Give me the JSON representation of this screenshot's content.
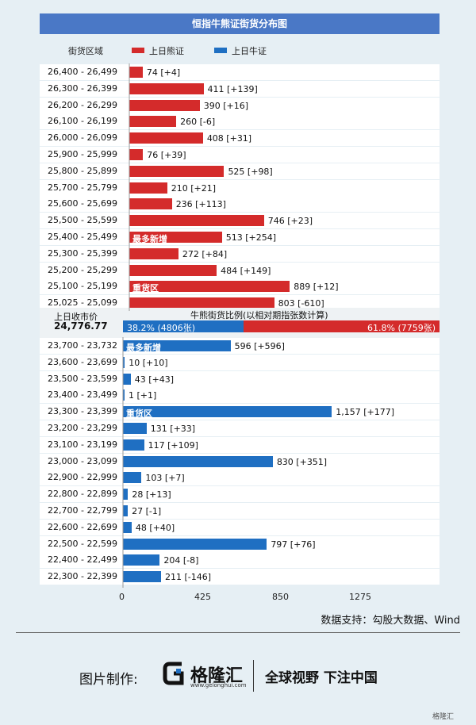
{
  "title": "恒指牛熊证街货分布图",
  "legend": {
    "header": "街货区域",
    "bear": "上日熊证",
    "bull": "上日牛证"
  },
  "colors": {
    "bear": "#d42b2b",
    "bull": "#1f6fc2",
    "title_bg": "#4a78c6",
    "page_bg": "#e6eff4"
  },
  "close": {
    "label": "上日收市价",
    "value": "24,776.77"
  },
  "ratio": {
    "title": "牛熊街货比例(以相对期指张数计算)",
    "bull_text": "38.2% (4806张)",
    "bear_text": "61.8% (7759张)",
    "bull_fraction": 0.382
  },
  "chart_data": {
    "type": "bar",
    "orientation": "horizontal",
    "title": "恒指牛熊证街货分布图",
    "xlim": [
      0,
      1700
    ],
    "xticks": [
      "0",
      "425",
      "850",
      "1275"
    ],
    "bears": [
      {
        "range": "26,400 - 26,499",
        "value": 74,
        "label": "74 [+4]"
      },
      {
        "range": "26,300 - 26,399",
        "value": 411,
        "label": "411 [+139]"
      },
      {
        "range": "26,200 - 26,299",
        "value": 390,
        "label": "390 [+16]"
      },
      {
        "range": "26,100 - 26,199",
        "value": 260,
        "label": "260 [-6]"
      },
      {
        "range": "26,000 - 26,099",
        "value": 408,
        "label": "408 [+31]"
      },
      {
        "range": "25,900 - 25,999",
        "value": 76,
        "label": "76 [+39]"
      },
      {
        "range": "25,800 - 25,899",
        "value": 525,
        "label": "525 [+98]"
      },
      {
        "range": "25,700 - 25,799",
        "value": 210,
        "label": "210 [+21]"
      },
      {
        "range": "25,600 - 25,699",
        "value": 236,
        "label": "236 [+113]"
      },
      {
        "range": "25,500 - 25,599",
        "value": 746,
        "label": "746 [+23]"
      },
      {
        "range": "25,400 - 25,499",
        "value": 513,
        "label": "513 [+254]",
        "tag": "最多新增"
      },
      {
        "range": "25,300 - 25,399",
        "value": 272,
        "label": "272 [+84]"
      },
      {
        "range": "25,200 - 25,299",
        "value": 484,
        "label": "484 [+149]"
      },
      {
        "range": "25,100 - 25,199",
        "value": 889,
        "label": "889 [+12]",
        "tag": "重货区"
      },
      {
        "range": "25,025 - 25,099",
        "value": 803,
        "label": "803 [-610]"
      }
    ],
    "bulls": [
      {
        "range": "23,700 - 23,732",
        "value": 596,
        "label": "596 [+596]",
        "tag": "最多新增"
      },
      {
        "range": "23,600 - 23,699",
        "value": 10,
        "label": "10 [+10]"
      },
      {
        "range": "23,500 - 23,599",
        "value": 43,
        "label": "43 [+43]"
      },
      {
        "range": "23,400 - 23,499",
        "value": 1,
        "label": "1 [+1]"
      },
      {
        "range": "23,300 - 23,399",
        "value": 1157,
        "label": "1,157 [+177]",
        "tag": "重货区"
      },
      {
        "range": "23,200 - 23,299",
        "value": 131,
        "label": "131 [+33]"
      },
      {
        "range": "23,100 - 23,199",
        "value": 117,
        "label": "117 [+109]"
      },
      {
        "range": "23,000 - 23,099",
        "value": 830,
        "label": "830 [+351]"
      },
      {
        "range": "22,900 - 22,999",
        "value": 103,
        "label": "103 [+7]"
      },
      {
        "range": "22,800 - 22,899",
        "value": 28,
        "label": "28 [+13]"
      },
      {
        "range": "22,700 - 22,799",
        "value": 27,
        "label": "27 [-1]"
      },
      {
        "range": "22,600 - 22,699",
        "value": 48,
        "label": "48 [+40]"
      },
      {
        "range": "22,500 - 22,599",
        "value": 797,
        "label": "797 [+76]"
      },
      {
        "range": "22,400 - 22,499",
        "value": 204,
        "label": "204 [-8]"
      },
      {
        "range": "22,300 - 22,399",
        "value": 211,
        "label": "211 [-146]"
      }
    ]
  },
  "source": "数据支持：勾股大数据、Wind",
  "footer": {
    "made_by": "图片制作:",
    "brand": "格隆汇",
    "brand_url": "www.gelonghui.com",
    "slogan": "全球视野 下注中国",
    "watermark": "格隆汇"
  }
}
